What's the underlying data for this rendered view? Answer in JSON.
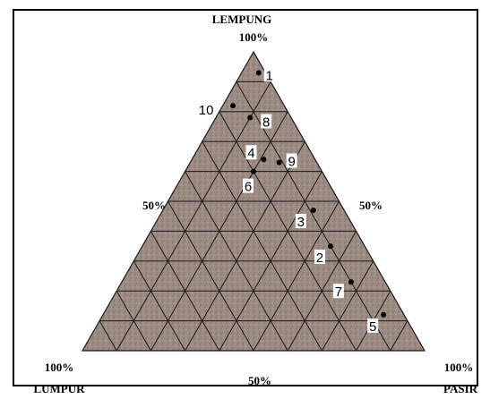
{
  "apex_labels": {
    "top": "LEMPUNG",
    "left": "LUMPUR",
    "right": "PASIR"
  },
  "percent_labels": {
    "top": "100%",
    "left_mid": "50%",
    "right_mid": "50%",
    "bottom_left": "100%",
    "bottom_mid": "50%",
    "bottom_right": "100%"
  },
  "colors": {
    "fill": "#9c8b82",
    "grid": "#1a1a1a",
    "point": "#000000",
    "label_bg": "#ffffff"
  },
  "samples": [
    {
      "id": "1",
      "lempung": 93,
      "pasir": 5,
      "lumpur": 2
    },
    {
      "id": "10",
      "lempung": 82,
      "pasir": 3,
      "lumpur": 15
    },
    {
      "id": "8",
      "lempung": 78,
      "pasir": 10,
      "lumpur": 12
    },
    {
      "id": "4",
      "lempung": 64,
      "pasir": 21,
      "lumpur": 15
    },
    {
      "id": "9",
      "lempung": 63,
      "pasir": 26,
      "lumpur": 11
    },
    {
      "id": "6",
      "lempung": 60,
      "pasir": 20,
      "lumpur": 20
    },
    {
      "id": "3",
      "lempung": 47,
      "pasir": 44,
      "lumpur": 9
    },
    {
      "id": "2",
      "lempung": 35,
      "pasir": 55,
      "lumpur": 10
    },
    {
      "id": "7",
      "lempung": 23,
      "pasir": 67,
      "lumpur": 10
    },
    {
      "id": "5",
      "lempung": 12,
      "pasir": 82,
      "lumpur": 6
    }
  ]
}
